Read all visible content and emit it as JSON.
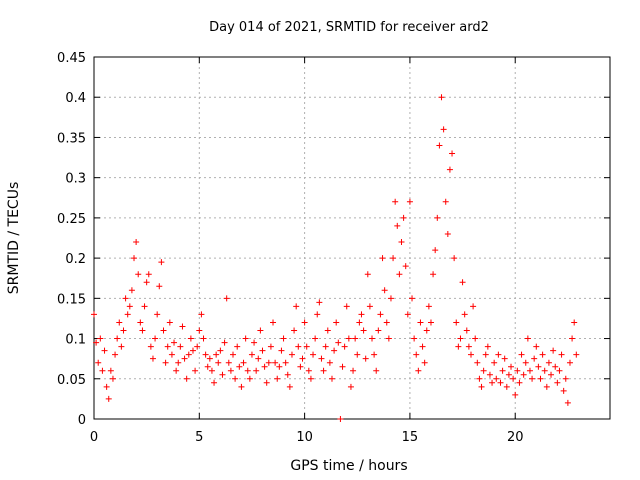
{
  "chart_data": {
    "type": "scatter",
    "title": "Day 014 of 2021, SRMTID for receiver ard2",
    "xlabel": "GPS time / hours",
    "ylabel": "SRMTID / TECUs",
    "xlim": [
      0,
      24.5
    ],
    "ylim": [
      0,
      0.45
    ],
    "xticks": [
      0,
      5,
      10,
      15,
      20
    ],
    "xtick_labels": [
      "0",
      "5",
      "10",
      "15",
      "20"
    ],
    "yticks": [
      0,
      0.05,
      0.1,
      0.15,
      0.2,
      0.25,
      0.3,
      0.35,
      0.4,
      0.45
    ],
    "ytick_labels": [
      "0",
      "0.05",
      "0.1",
      "0.15",
      "0.2",
      "0.25",
      "0.3",
      "0.35",
      "0.4",
      "0.45"
    ],
    "grid": true,
    "marker": "+",
    "color": "#ff0000",
    "series": [
      {
        "name": "SRMTID",
        "points": [
          [
            0.0,
            0.13
          ],
          [
            0.1,
            0.095
          ],
          [
            0.2,
            0.07
          ],
          [
            0.3,
            0.1
          ],
          [
            0.4,
            0.06
          ],
          [
            0.5,
            0.085
          ],
          [
            0.6,
            0.04
          ],
          [
            0.7,
            0.025
          ],
          [
            0.8,
            0.06
          ],
          [
            0.9,
            0.05
          ],
          [
            1.0,
            0.08
          ],
          [
            1.1,
            0.1
          ],
          [
            1.2,
            0.12
          ],
          [
            1.3,
            0.09
          ],
          [
            1.4,
            0.11
          ],
          [
            1.5,
            0.15
          ],
          [
            1.6,
            0.13
          ],
          [
            1.7,
            0.14
          ],
          [
            1.8,
            0.16
          ],
          [
            1.9,
            0.2
          ],
          [
            2.0,
            0.22
          ],
          [
            2.1,
            0.18
          ],
          [
            2.2,
            0.12
          ],
          [
            2.3,
            0.11
          ],
          [
            2.4,
            0.14
          ],
          [
            2.5,
            0.17
          ],
          [
            2.6,
            0.18
          ],
          [
            2.7,
            0.09
          ],
          [
            2.8,
            0.075
          ],
          [
            2.9,
            0.1
          ],
          [
            3.0,
            0.13
          ],
          [
            3.1,
            0.165
          ],
          [
            3.2,
            0.195
          ],
          [
            3.3,
            0.11
          ],
          [
            3.4,
            0.07
          ],
          [
            3.5,
            0.09
          ],
          [
            3.6,
            0.12
          ],
          [
            3.7,
            0.08
          ],
          [
            3.8,
            0.095
          ],
          [
            3.9,
            0.06
          ],
          [
            4.0,
            0.07
          ],
          [
            4.1,
            0.09
          ],
          [
            4.2,
            0.115
          ],
          [
            4.3,
            0.075
          ],
          [
            4.4,
            0.05
          ],
          [
            4.5,
            0.08
          ],
          [
            4.6,
            0.1
          ],
          [
            4.7,
            0.085
          ],
          [
            4.8,
            0.06
          ],
          [
            4.9,
            0.09
          ],
          [
            5.0,
            0.11
          ],
          [
            5.1,
            0.13
          ],
          [
            5.2,
            0.1
          ],
          [
            5.3,
            0.08
          ],
          [
            5.4,
            0.065
          ],
          [
            5.5,
            0.075
          ],
          [
            5.6,
            0.06
          ],
          [
            5.7,
            0.045
          ],
          [
            5.8,
            0.08
          ],
          [
            5.9,
            0.07
          ],
          [
            6.0,
            0.085
          ],
          [
            6.1,
            0.055
          ],
          [
            6.2,
            0.095
          ],
          [
            6.3,
            0.15
          ],
          [
            6.4,
            0.07
          ],
          [
            6.5,
            0.06
          ],
          [
            6.6,
            0.08
          ],
          [
            6.7,
            0.05
          ],
          [
            6.8,
            0.09
          ],
          [
            6.9,
            0.065
          ],
          [
            7.0,
            0.04
          ],
          [
            7.1,
            0.07
          ],
          [
            7.2,
            0.1
          ],
          [
            7.3,
            0.06
          ],
          [
            7.4,
            0.05
          ],
          [
            7.5,
            0.08
          ],
          [
            7.6,
            0.095
          ],
          [
            7.7,
            0.06
          ],
          [
            7.8,
            0.075
          ],
          [
            7.9,
            0.11
          ],
          [
            8.0,
            0.085
          ],
          [
            8.1,
            0.065
          ],
          [
            8.2,
            0.045
          ],
          [
            8.3,
            0.07
          ],
          [
            8.4,
            0.09
          ],
          [
            8.5,
            0.12
          ],
          [
            8.6,
            0.07
          ],
          [
            8.7,
            0.05
          ],
          [
            8.8,
            0.065
          ],
          [
            8.9,
            0.085
          ],
          [
            9.0,
            0.1
          ],
          [
            9.1,
            0.07
          ],
          [
            9.2,
            0.055
          ],
          [
            9.3,
            0.04
          ],
          [
            9.4,
            0.08
          ],
          [
            9.5,
            0.11
          ],
          [
            9.6,
            0.14
          ],
          [
            9.7,
            0.09
          ],
          [
            9.8,
            0.065
          ],
          [
            9.9,
            0.075
          ],
          [
            10.0,
            0.12
          ],
          [
            10.1,
            0.09
          ],
          [
            10.2,
            0.06
          ],
          [
            10.3,
            0.05
          ],
          [
            10.4,
            0.08
          ],
          [
            10.5,
            0.1
          ],
          [
            10.6,
            0.13
          ],
          [
            10.7,
            0.145
          ],
          [
            10.8,
            0.075
          ],
          [
            10.9,
            0.06
          ],
          [
            11.0,
            0.09
          ],
          [
            11.1,
            0.11
          ],
          [
            11.2,
            0.07
          ],
          [
            11.3,
            0.05
          ],
          [
            11.4,
            0.085
          ],
          [
            11.5,
            0.12
          ],
          [
            11.6,
            0.095
          ],
          [
            11.7,
            0.0
          ],
          [
            11.8,
            0.065
          ],
          [
            11.9,
            0.09
          ],
          [
            12.0,
            0.14
          ],
          [
            12.1,
            0.1
          ],
          [
            12.2,
            0.04
          ],
          [
            12.3,
            0.06
          ],
          [
            12.4,
            0.1
          ],
          [
            12.5,
            0.08
          ],
          [
            12.6,
            0.12
          ],
          [
            12.7,
            0.13
          ],
          [
            12.8,
            0.11
          ],
          [
            12.9,
            0.075
          ],
          [
            13.0,
            0.18
          ],
          [
            13.1,
            0.14
          ],
          [
            13.2,
            0.1
          ],
          [
            13.3,
            0.08
          ],
          [
            13.4,
            0.06
          ],
          [
            13.5,
            0.11
          ],
          [
            13.6,
            0.13
          ],
          [
            13.7,
            0.2
          ],
          [
            13.8,
            0.16
          ],
          [
            13.9,
            0.12
          ],
          [
            14.0,
            0.1
          ],
          [
            14.1,
            0.15
          ],
          [
            14.2,
            0.2
          ],
          [
            14.3,
            0.27
          ],
          [
            14.4,
            0.24
          ],
          [
            14.5,
            0.18
          ],
          [
            14.6,
            0.22
          ],
          [
            14.7,
            0.25
          ],
          [
            14.8,
            0.19
          ],
          [
            14.9,
            0.13
          ],
          [
            15.0,
            0.27
          ],
          [
            15.1,
            0.15
          ],
          [
            15.2,
            0.1
          ],
          [
            15.3,
            0.08
          ],
          [
            15.4,
            0.06
          ],
          [
            15.5,
            0.12
          ],
          [
            15.6,
            0.09
          ],
          [
            15.7,
            0.07
          ],
          [
            15.8,
            0.11
          ],
          [
            15.9,
            0.14
          ],
          [
            16.0,
            0.12
          ],
          [
            16.1,
            0.18
          ],
          [
            16.2,
            0.21
          ],
          [
            16.3,
            0.25
          ],
          [
            16.4,
            0.34
          ],
          [
            16.5,
            0.4
          ],
          [
            16.6,
            0.36
          ],
          [
            16.7,
            0.27
          ],
          [
            16.8,
            0.23
          ],
          [
            16.9,
            0.31
          ],
          [
            17.0,
            0.33
          ],
          [
            17.1,
            0.2
          ],
          [
            17.2,
            0.12
          ],
          [
            17.3,
            0.09
          ],
          [
            17.4,
            0.1
          ],
          [
            17.5,
            0.17
          ],
          [
            17.6,
            0.13
          ],
          [
            17.7,
            0.11
          ],
          [
            17.8,
            0.09
          ],
          [
            17.9,
            0.08
          ],
          [
            18.0,
            0.14
          ],
          [
            18.1,
            0.1
          ],
          [
            18.2,
            0.07
          ],
          [
            18.3,
            0.05
          ],
          [
            18.4,
            0.04
          ],
          [
            18.5,
            0.06
          ],
          [
            18.6,
            0.08
          ],
          [
            18.7,
            0.09
          ],
          [
            18.8,
            0.055
          ],
          [
            18.9,
            0.045
          ],
          [
            19.0,
            0.07
          ],
          [
            19.1,
            0.05
          ],
          [
            19.2,
            0.08
          ],
          [
            19.3,
            0.045
          ],
          [
            19.4,
            0.06
          ],
          [
            19.5,
            0.075
          ],
          [
            19.6,
            0.04
          ],
          [
            19.7,
            0.055
          ],
          [
            19.8,
            0.065
          ],
          [
            19.9,
            0.05
          ],
          [
            20.0,
            0.03
          ],
          [
            20.1,
            0.06
          ],
          [
            20.2,
            0.045
          ],
          [
            20.3,
            0.08
          ],
          [
            20.4,
            0.055
          ],
          [
            20.5,
            0.07
          ],
          [
            20.6,
            0.1
          ],
          [
            20.7,
            0.06
          ],
          [
            20.8,
            0.05
          ],
          [
            20.9,
            0.075
          ],
          [
            21.0,
            0.09
          ],
          [
            21.1,
            0.065
          ],
          [
            21.2,
            0.05
          ],
          [
            21.3,
            0.08
          ],
          [
            21.4,
            0.06
          ],
          [
            21.5,
            0.04
          ],
          [
            21.6,
            0.07
          ],
          [
            21.7,
            0.055
          ],
          [
            21.8,
            0.085
          ],
          [
            21.9,
            0.065
          ],
          [
            22.0,
            0.045
          ],
          [
            22.1,
            0.06
          ],
          [
            22.2,
            0.08
          ],
          [
            22.3,
            0.035
          ],
          [
            22.4,
            0.05
          ],
          [
            22.5,
            0.02
          ],
          [
            22.6,
            0.07
          ],
          [
            22.7,
            0.1
          ],
          [
            22.8,
            0.12
          ],
          [
            22.9,
            0.08
          ]
        ]
      }
    ]
  }
}
